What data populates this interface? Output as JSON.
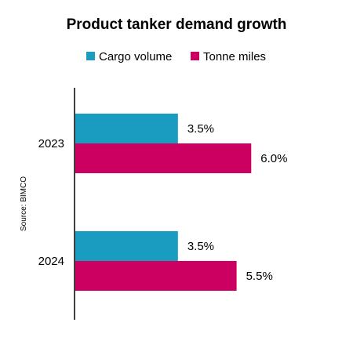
{
  "chart_data": {
    "type": "bar",
    "orientation": "horizontal",
    "title": "Product tanker demand growth",
    "categories": [
      "2023",
      "2024"
    ],
    "series": [
      {
        "name": "Cargo volume",
        "values": [
          3.5,
          3.5
        ],
        "labels": [
          "3.5%",
          "3.5%"
        ],
        "color": "#1a9bc0"
      },
      {
        "name": "Tonne miles",
        "values": [
          6.0,
          5.5
        ],
        "labels": [
          "6.0%",
          "5.5%"
        ],
        "color": "#cc0060"
      }
    ],
    "xlim": [
      0,
      8.4
    ],
    "grid": false,
    "legend_position": "top",
    "source": "Source: BIMCO"
  }
}
